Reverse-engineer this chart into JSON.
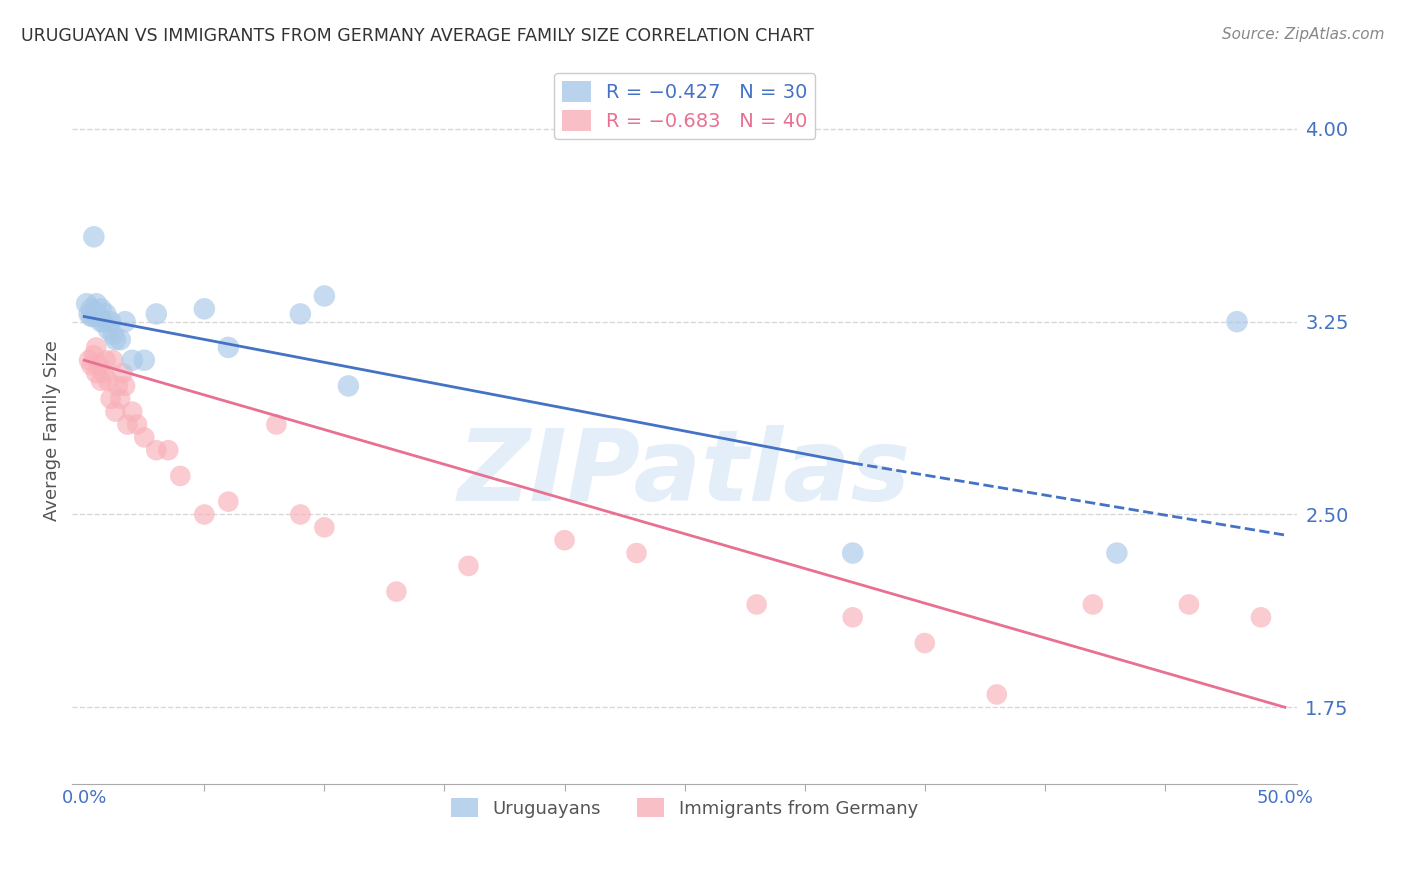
{
  "title": "URUGUAYAN VS IMMIGRANTS FROM GERMANY AVERAGE FAMILY SIZE CORRELATION CHART",
  "source": "Source: ZipAtlas.com",
  "ylabel": "Average Family Size",
  "yticks": [
    1.75,
    2.5,
    3.25,
    4.0
  ],
  "background_color": "#ffffff",
  "grid_color": "#d8d8d8",
  "blue_color": "#a8c8e8",
  "pink_color": "#f8b0b8",
  "trendline_blue": "#4472c4",
  "trendline_pink": "#e87090",
  "watermark": "ZIPatlas",
  "blue_label_color": "#4472c4",
  "pink_label_color": "#e87090",
  "blue_points_x": [
    0.001,
    0.002,
    0.003,
    0.003,
    0.004,
    0.004,
    0.005,
    0.005,
    0.006,
    0.007,
    0.007,
    0.008,
    0.009,
    0.01,
    0.011,
    0.012,
    0.013,
    0.015,
    0.017,
    0.02,
    0.025,
    0.03,
    0.05,
    0.06,
    0.09,
    0.1,
    0.11,
    0.32,
    0.43,
    0.48
  ],
  "blue_points_y": [
    3.32,
    3.28,
    3.3,
    3.27,
    3.58,
    3.27,
    3.32,
    3.28,
    3.27,
    3.3,
    3.25,
    3.25,
    3.28,
    3.22,
    3.25,
    3.2,
    3.18,
    3.18,
    3.25,
    3.1,
    3.1,
    3.28,
    3.3,
    3.15,
    3.28,
    3.35,
    3.0,
    2.35,
    2.35,
    3.25
  ],
  "pink_points_x": [
    0.002,
    0.003,
    0.004,
    0.005,
    0.005,
    0.006,
    0.007,
    0.008,
    0.009,
    0.01,
    0.011,
    0.012,
    0.013,
    0.014,
    0.015,
    0.016,
    0.017,
    0.018,
    0.02,
    0.022,
    0.025,
    0.03,
    0.035,
    0.04,
    0.05,
    0.06,
    0.08,
    0.09,
    0.1,
    0.13,
    0.16,
    0.2,
    0.23,
    0.28,
    0.32,
    0.35,
    0.38,
    0.42,
    0.46,
    0.49
  ],
  "pink_points_y": [
    3.1,
    3.08,
    3.12,
    3.05,
    3.15,
    3.08,
    3.02,
    3.05,
    3.1,
    3.02,
    2.95,
    3.1,
    2.9,
    3.0,
    2.95,
    3.05,
    3.0,
    2.85,
    2.9,
    2.85,
    2.8,
    2.75,
    2.75,
    2.65,
    2.5,
    2.55,
    2.85,
    2.5,
    2.45,
    2.2,
    2.3,
    2.4,
    2.35,
    2.15,
    2.1,
    2.0,
    1.8,
    2.15,
    2.15,
    2.1
  ],
  "blue_trend_x0": 0.0,
  "blue_trend_x1": 0.32,
  "blue_trend_x2": 0.5,
  "blue_trend_y0": 3.27,
  "blue_trend_y1": 2.7,
  "blue_trend_y2": 2.42,
  "pink_trend_x0": 0.0,
  "pink_trend_x1": 0.5,
  "pink_trend_y0": 3.1,
  "pink_trend_y1": 1.75,
  "xmin": -0.005,
  "xmax": 0.505,
  "ymin": 1.45,
  "ymax": 4.2,
  "xtick_positions": [
    0.0,
    0.5
  ],
  "xtick_labels": [
    "0.0%",
    "50.0%"
  ]
}
